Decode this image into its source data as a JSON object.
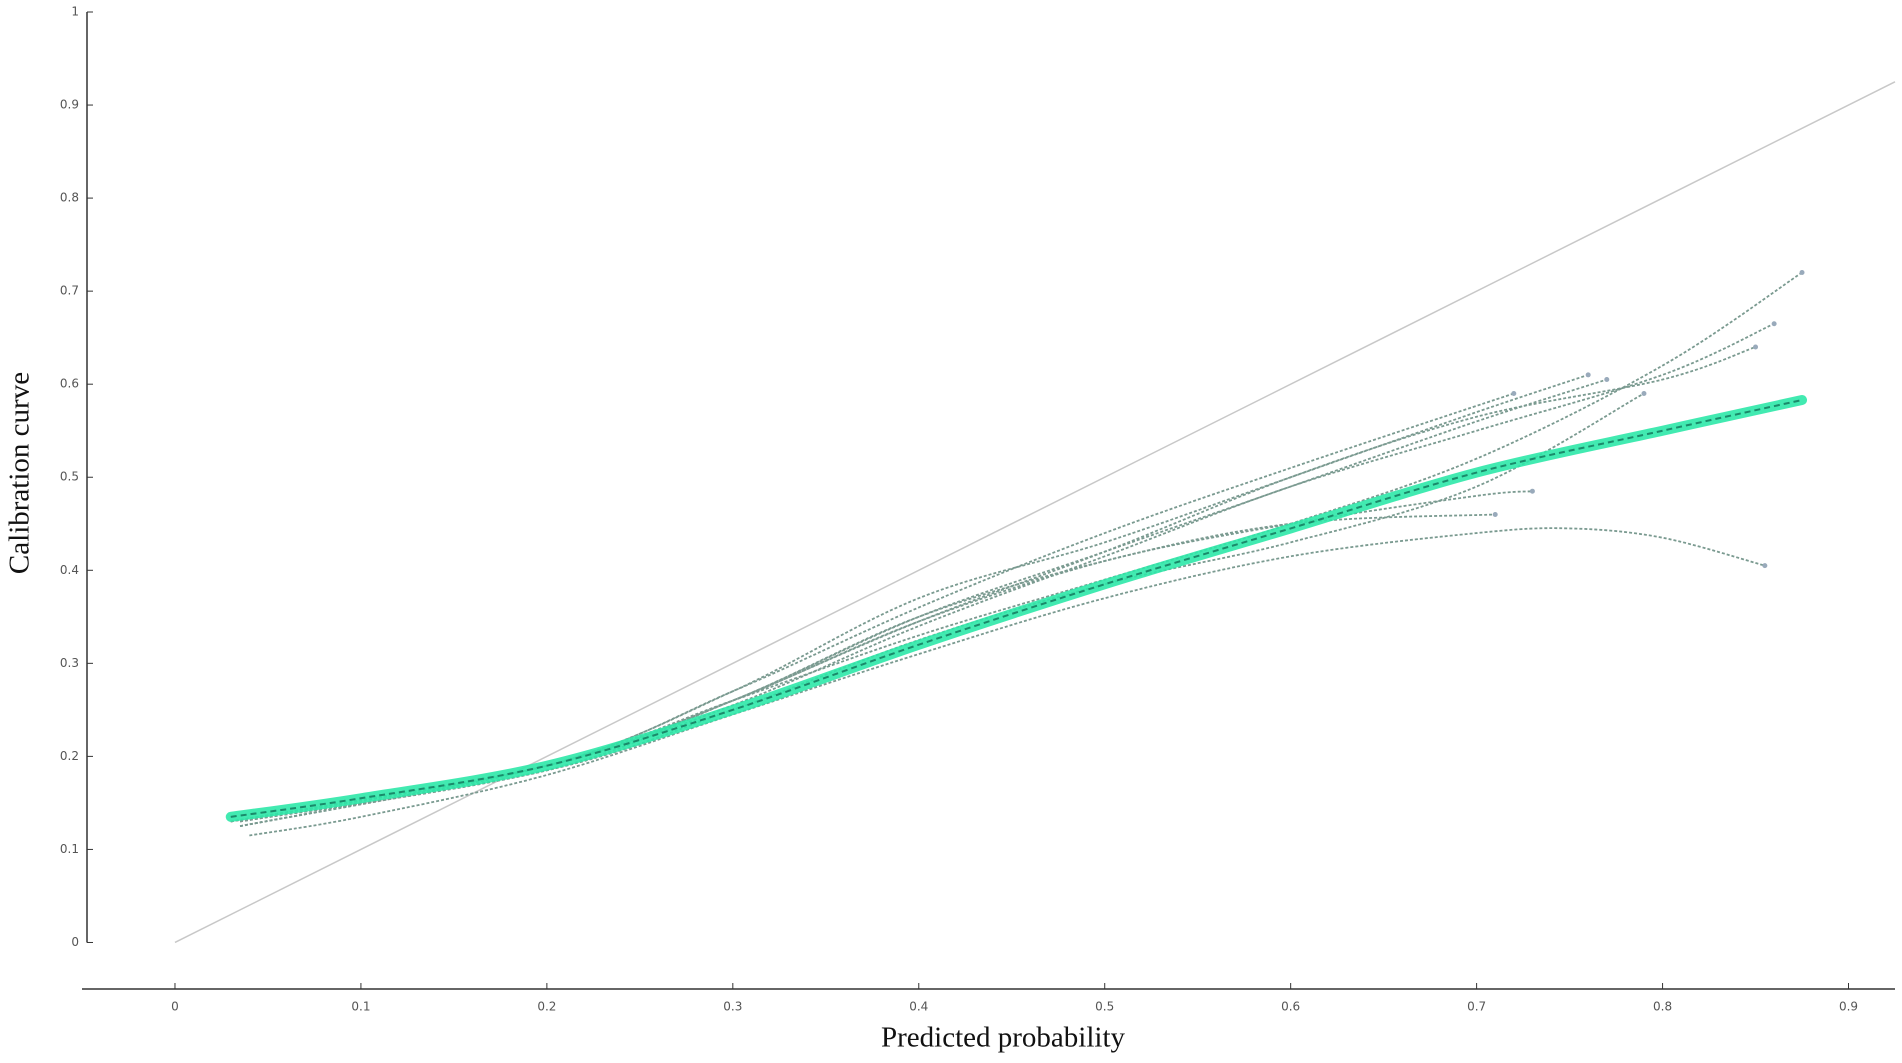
{
  "chart_data": {
    "type": "line",
    "xlabel": "Predicted probability",
    "ylabel": "Calibration curve",
    "xlim": [
      -0.05,
      0.925
    ],
    "ylim": [
      -0.05,
      1
    ],
    "xticks": [
      0,
      0.1,
      0.2,
      0.3,
      0.4,
      0.5,
      0.6,
      0.7,
      0.8,
      0.9
    ],
    "yticks": [
      0,
      0.1,
      0.2,
      0.3,
      0.4,
      0.5,
      0.6,
      0.7,
      0.8,
      0.9,
      1
    ],
    "reference": {
      "x": [
        0,
        0.925
      ],
      "values": [
        0,
        0.925
      ],
      "color": "#c8c8c8"
    },
    "series": [
      {
        "color": "#2ee8a8",
        "x": [
          0.03,
          0.1,
          0.2,
          0.3,
          0.4,
          0.5,
          0.6,
          0.7,
          0.8,
          0.875
        ],
        "values": [
          0.135,
          0.155,
          0.19,
          0.25,
          0.32,
          0.385,
          0.445,
          0.505,
          0.55,
          0.583
        ]
      },
      {
        "color": "#7a9a90",
        "x": [
          0.035,
          0.2,
          0.3,
          0.4,
          0.5,
          0.6,
          0.7,
          0.8,
          0.875
        ],
        "values": [
          0.125,
          0.19,
          0.26,
          0.33,
          0.39,
          0.45,
          0.52,
          0.62,
          0.72
        ]
      },
      {
        "color": "#7a9a90",
        "x": [
          0.04,
          0.1,
          0.2,
          0.3,
          0.4,
          0.5,
          0.6,
          0.7,
          0.75,
          0.8,
          0.855
        ],
        "values": [
          0.115,
          0.135,
          0.18,
          0.245,
          0.31,
          0.37,
          0.415,
          0.44,
          0.445,
          0.435,
          0.405
        ]
      },
      {
        "color": "#7a9a90",
        "x": [
          0.03,
          0.2,
          0.3,
          0.4,
          0.5,
          0.6,
          0.7,
          0.8,
          0.86
        ],
        "values": [
          0.13,
          0.19,
          0.255,
          0.34,
          0.415,
          0.49,
          0.55,
          0.61,
          0.665
        ]
      },
      {
        "color": "#7a9a90",
        "x": [
          0.035,
          0.2,
          0.3,
          0.4,
          0.5,
          0.6,
          0.7,
          0.8,
          0.85
        ],
        "values": [
          0.13,
          0.185,
          0.26,
          0.345,
          0.42,
          0.5,
          0.565,
          0.605,
          0.64
        ]
      },
      {
        "color": "#7a9a90",
        "x": [
          0.035,
          0.2,
          0.3,
          0.4,
          0.5,
          0.6,
          0.7,
          0.76
        ],
        "values": [
          0.125,
          0.19,
          0.27,
          0.37,
          0.43,
          0.5,
          0.57,
          0.61
        ]
      },
      {
        "color": "#7a9a90",
        "x": [
          0.03,
          0.2,
          0.3,
          0.4,
          0.5,
          0.6,
          0.72
        ],
        "values": [
          0.13,
          0.19,
          0.27,
          0.36,
          0.44,
          0.51,
          0.59
        ]
      },
      {
        "color": "#7a9a90",
        "x": [
          0.035,
          0.2,
          0.3,
          0.4,
          0.5,
          0.6,
          0.7,
          0.79
        ],
        "values": [
          0.13,
          0.185,
          0.25,
          0.325,
          0.385,
          0.43,
          0.49,
          0.59
        ]
      },
      {
        "color": "#7a9a90",
        "x": [
          0.03,
          0.2,
          0.3,
          0.4,
          0.5,
          0.6,
          0.7,
          0.73
        ],
        "values": [
          0.13,
          0.19,
          0.26,
          0.345,
          0.41,
          0.45,
          0.48,
          0.485
        ]
      },
      {
        "color": "#7a9a90",
        "x": [
          0.03,
          0.2,
          0.3,
          0.4,
          0.5,
          0.6,
          0.71
        ],
        "values": [
          0.13,
          0.19,
          0.26,
          0.35,
          0.41,
          0.45,
          0.46
        ]
      },
      {
        "color": "#7a9a90",
        "x": [
          0.035,
          0.2,
          0.3,
          0.4,
          0.5,
          0.6,
          0.7,
          0.77
        ],
        "values": [
          0.125,
          0.19,
          0.26,
          0.35,
          0.42,
          0.49,
          0.56,
          0.605
        ]
      }
    ]
  }
}
